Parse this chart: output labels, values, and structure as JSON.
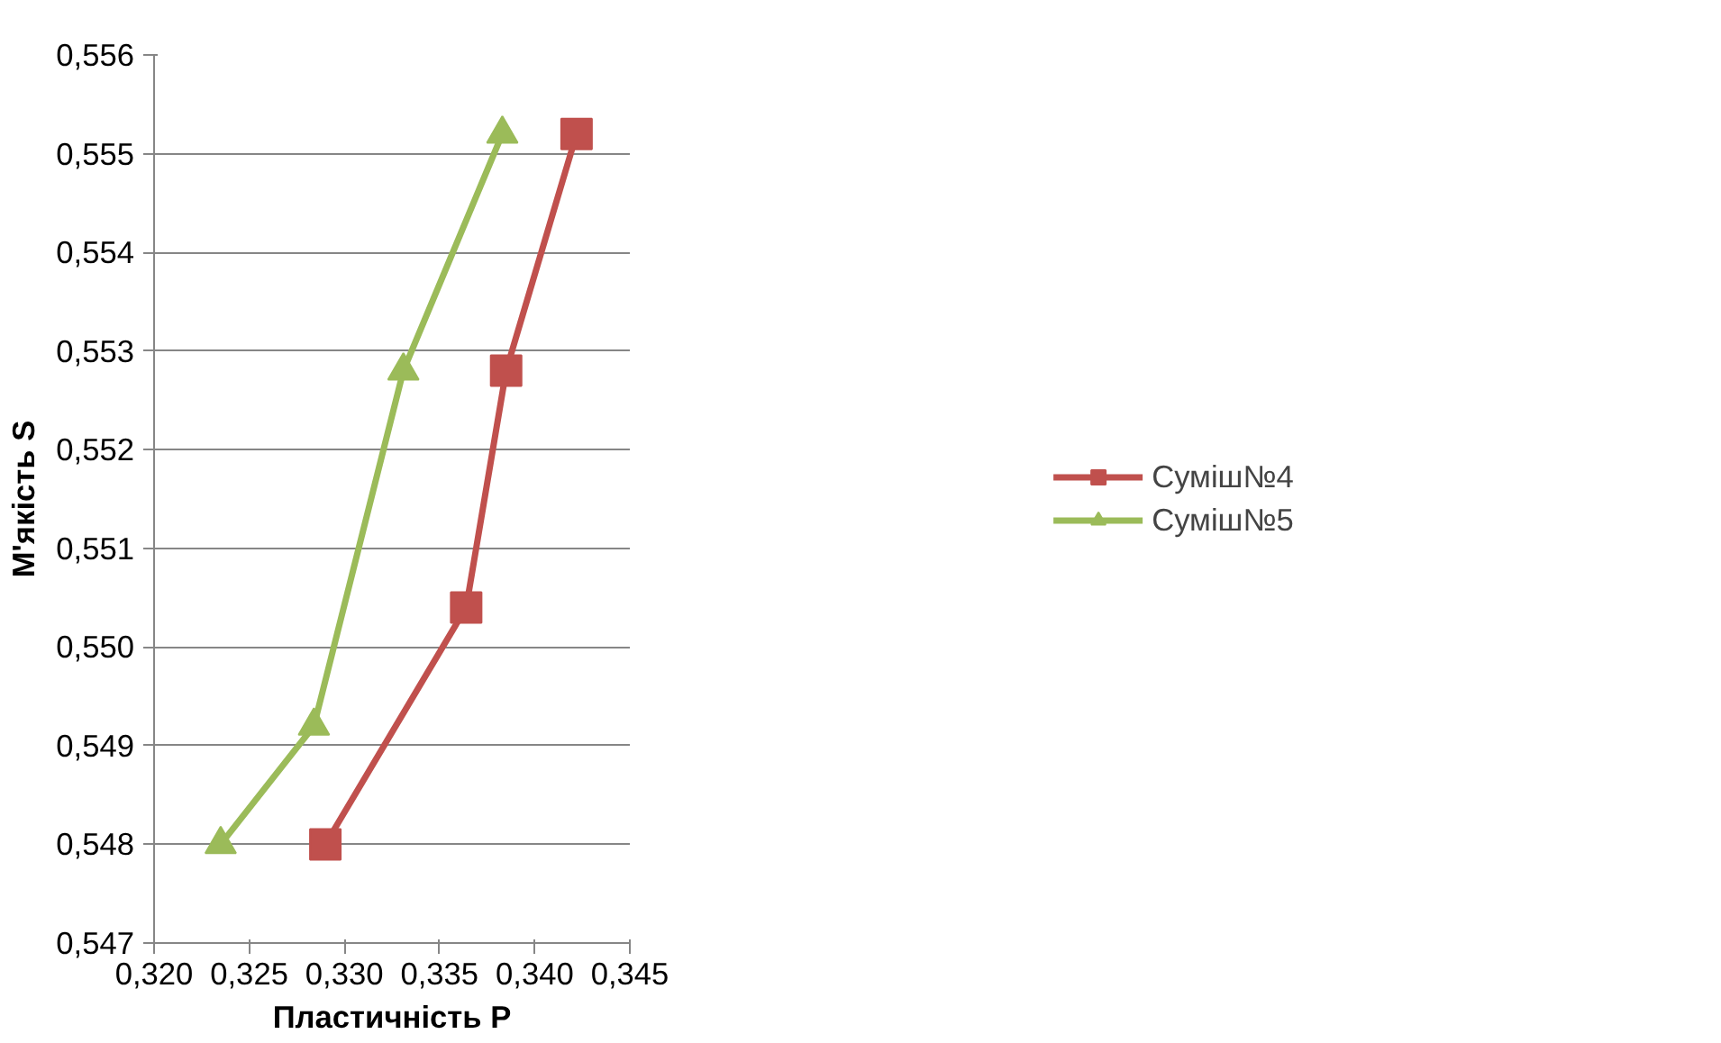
{
  "chart_data": {
    "type": "line",
    "xlabel": "Пластичність P",
    "ylabel": "М'якість S",
    "xlim": [
      0.32,
      0.345
    ],
    "xticks": [
      {
        "value": 0.32,
        "label": "0,320"
      },
      {
        "value": 0.325,
        "label": "0,325"
      },
      {
        "value": 0.33,
        "label": "0,330"
      },
      {
        "value": 0.335,
        "label": "0,335"
      },
      {
        "value": 0.34,
        "label": "0,340"
      },
      {
        "value": 0.345,
        "label": "0,345"
      }
    ],
    "ylim": [
      0.547,
      0.556
    ],
    "yticks": [
      {
        "value": 0.547,
        "label": "0,547"
      },
      {
        "value": 0.548,
        "label": "0,548"
      },
      {
        "value": 0.549,
        "label": "0,549"
      },
      {
        "value": 0.55,
        "label": "0,550"
      },
      {
        "value": 0.551,
        "label": "0,551"
      },
      {
        "value": 0.552,
        "label": "0,552"
      },
      {
        "value": 0.553,
        "label": "0,553"
      },
      {
        "value": 0.554,
        "label": "0,554"
      },
      {
        "value": 0.555,
        "label": "0,555"
      },
      {
        "value": 0.556,
        "label": "0,556"
      }
    ],
    "grid": "y",
    "legend": "right",
    "series": [
      {
        "name": "Суміш№4",
        "color": "#c0504d",
        "marker": "square",
        "x": [
          0.329,
          0.3364,
          0.3385,
          0.3422
        ],
        "values": [
          0.548,
          0.5504,
          0.5528,
          0.5552
        ]
      },
      {
        "name": "Суміш№5",
        "color": "#9bbb59",
        "marker": "triangle",
        "x": [
          0.3235,
          0.3284,
          0.3331,
          0.3383
        ],
        "values": [
          0.548,
          0.5492,
          0.5528,
          0.5552
        ]
      }
    ]
  }
}
